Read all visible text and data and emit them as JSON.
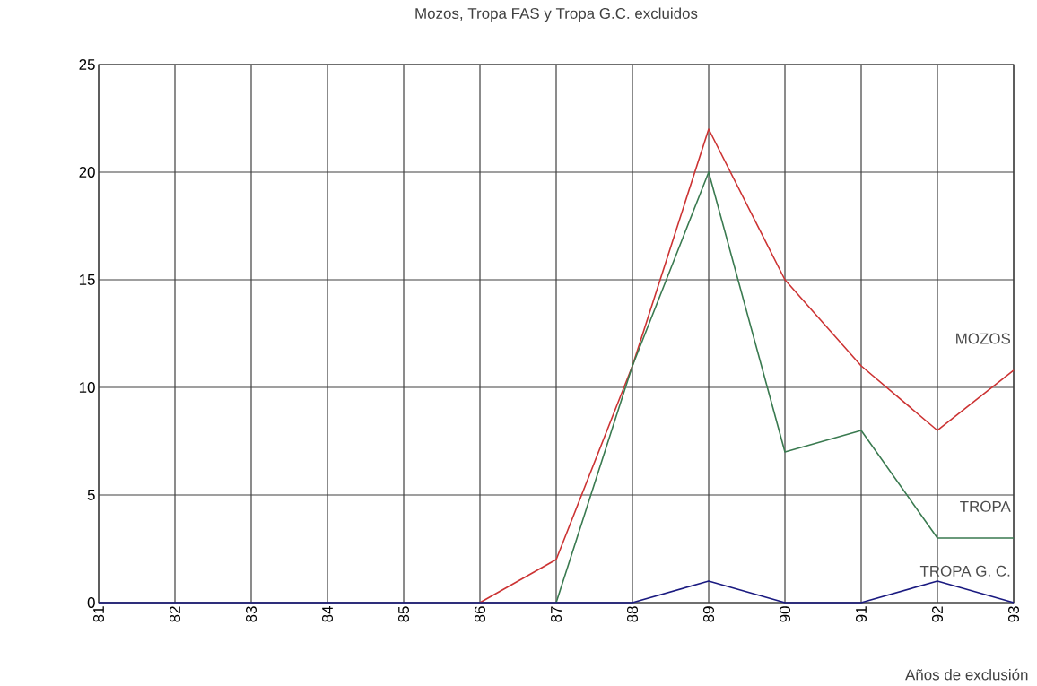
{
  "chart_data": {
    "type": "line",
    "title": "Mozos, Tropa FAS y Tropa G.C. excluidos",
    "xlabel": "Años de exclusión",
    "categories": [
      "81",
      "82",
      "83",
      "84",
      "85",
      "86",
      "87",
      "88",
      "89",
      "90",
      "91",
      "92",
      "93"
    ],
    "series": [
      {
        "name": "MOZOS",
        "color": "#cc3333",
        "values": [
          null,
          null,
          null,
          null,
          null,
          0,
          2,
          11,
          22,
          15,
          11,
          8,
          10.8
        ]
      },
      {
        "name": "TROPA",
        "color": "#3a7a50",
        "values": [
          null,
          null,
          null,
          null,
          null,
          null,
          0,
          11,
          20,
          7,
          8,
          3,
          3
        ]
      },
      {
        "name": "TROPA G. C.",
        "color": "#1a1a80",
        "values": [
          0,
          0,
          0,
          0,
          0,
          0,
          0,
          0,
          1,
          0,
          0,
          1,
          0
        ]
      }
    ],
    "ylim": [
      0,
      25
    ],
    "yticks": [
      0,
      5,
      10,
      15,
      20,
      25
    ],
    "grid": true,
    "legend": false,
    "marker": "none",
    "line_style": "solid"
  }
}
